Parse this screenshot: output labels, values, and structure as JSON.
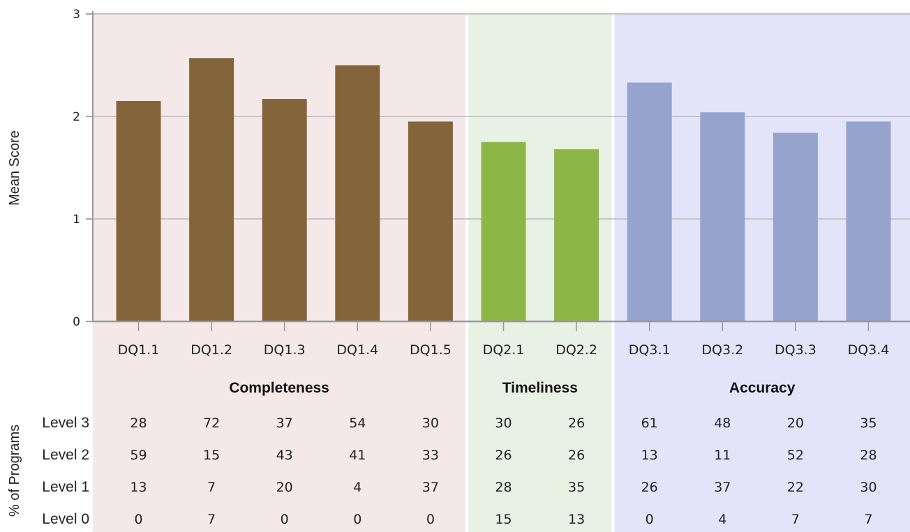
{
  "chart_data": {
    "type": "bar",
    "ylabel": "Mean Score",
    "table_ylabel": "% of Programs",
    "ylim": [
      0,
      3
    ],
    "yticks": [
      "0",
      "1",
      "2",
      "3"
    ],
    "grid": true,
    "groups": [
      {
        "name": "Completeness",
        "bg_color": "#f5e8e9",
        "bar_color": "#83643b",
        "categories": [
          "DQ1.1",
          "DQ1.2",
          "DQ1.3",
          "DQ1.4",
          "DQ1.5"
        ],
        "values": [
          2.15,
          2.57,
          2.17,
          2.5,
          1.95
        ]
      },
      {
        "name": "Timeliness",
        "bg_color": "#e7f1e4",
        "bar_color": "#8cb646",
        "categories": [
          "DQ2.1",
          "DQ2.2"
        ],
        "values": [
          1.75,
          1.68
        ]
      },
      {
        "name": "Accuracy",
        "bg_color": "#e3e4fa",
        "bar_color": "#95a3cd",
        "categories": [
          "DQ3.1",
          "DQ3.2",
          "DQ3.3",
          "DQ3.4"
        ],
        "values": [
          2.33,
          2.04,
          1.84,
          1.95
        ]
      }
    ],
    "table": {
      "row_labels": [
        "Level 3",
        "Level 2",
        "Level 1",
        "Level 0"
      ],
      "rows": [
        [
          "28",
          "72",
          "37",
          "54",
          "30",
          "30",
          "26",
          "61",
          "48",
          "20",
          "35"
        ],
        [
          "59",
          "15",
          "43",
          "41",
          "33",
          "26",
          "26",
          "13",
          "11",
          "52",
          "28"
        ],
        [
          "13",
          "7",
          "20",
          "4",
          "37",
          "28",
          "35",
          "26",
          "37",
          "22",
          "30"
        ],
        [
          "0",
          "7",
          "0",
          "0",
          "0",
          "15",
          "13",
          "0",
          "4",
          "7",
          "7"
        ]
      ]
    }
  }
}
